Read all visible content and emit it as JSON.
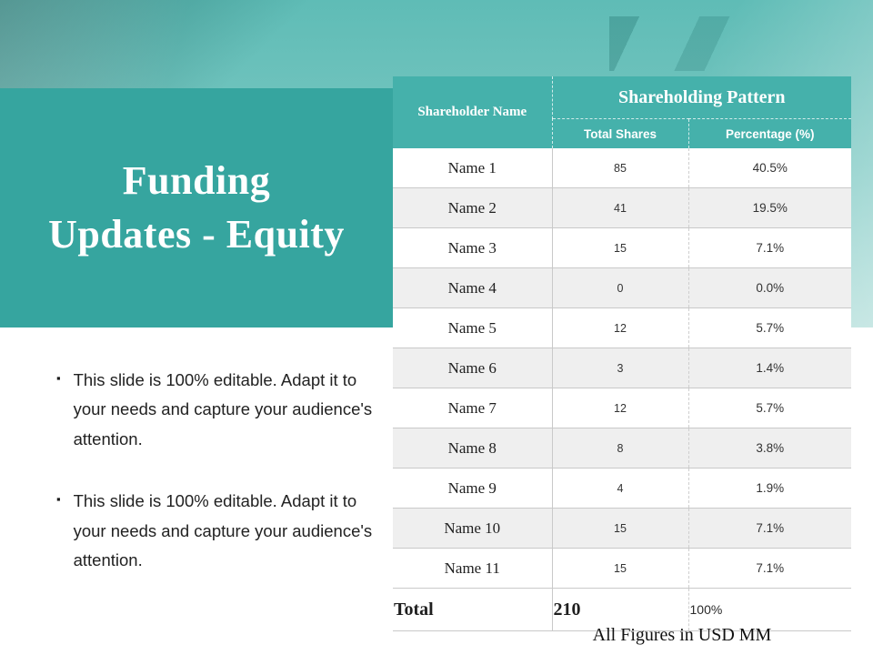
{
  "slide": {
    "title": {
      "line1": "Funding",
      "line2": "Updates - Equity"
    },
    "bullets": [
      "This slide is 100% editable. Adapt it to your needs and capture your audience's attention.",
      "This slide is 100% editable. Adapt it to your needs and capture your audience's attention."
    ],
    "footnote": "All Figures in USD MM"
  },
  "table": {
    "headers": {
      "shareholder": "Shareholder Name",
      "group": "Shareholding Pattern",
      "total_shares": "Total Shares",
      "percentage": "Percentage (%)"
    },
    "rows": [
      {
        "name": "Name 1",
        "shares": "85",
        "pct": "40.5%"
      },
      {
        "name": "Name 2",
        "shares": "41",
        "pct": "19.5%"
      },
      {
        "name": "Name 3",
        "shares": "15",
        "pct": "7.1%"
      },
      {
        "name": "Name 4",
        "shares": "0",
        "pct": "0.0%"
      },
      {
        "name": "Name 5",
        "shares": "12",
        "pct": "5.7%"
      },
      {
        "name": "Name 6",
        "shares": "3",
        "pct": "1.4%"
      },
      {
        "name": "Name 7",
        "shares": "12",
        "pct": "5.7%"
      },
      {
        "name": "Name 8",
        "shares": "8",
        "pct": "3.8%"
      },
      {
        "name": "Name 9",
        "shares": "4",
        "pct": "1.9%"
      },
      {
        "name": "Name 10",
        "shares": "15",
        "pct": "7.1%"
      },
      {
        "name": "Name 11",
        "shares": "15",
        "pct": "7.1%"
      }
    ],
    "total": {
      "name": "Total",
      "shares": "210",
      "pct": "100%"
    }
  },
  "colors": {
    "title_panel_teal": "#36a59f",
    "table_header_teal": "#45b1ab",
    "alt_row_gray": "#efefef"
  }
}
